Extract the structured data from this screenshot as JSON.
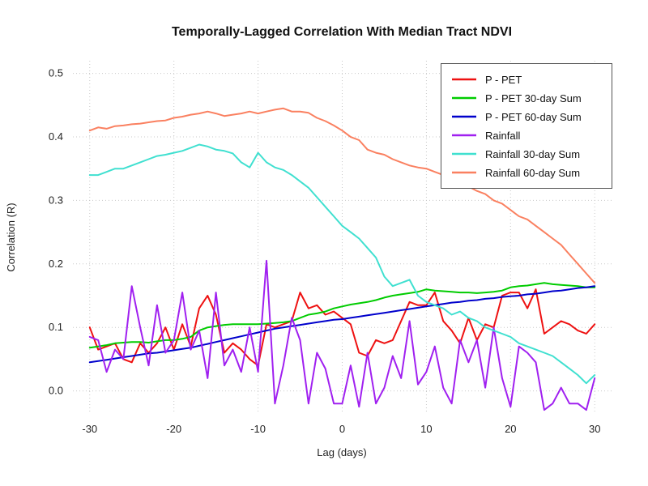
{
  "chart_data": {
    "type": "line",
    "title": "Temporally-Lagged Correlation With Median Tract NDVI",
    "xlabel": "Lag (days)",
    "ylabel": "Correlation (R)",
    "xlim": [
      -32,
      32
    ],
    "ylim": [
      -0.035,
      0.52
    ],
    "xticks": [
      -30,
      -20,
      -10,
      0,
      10,
      20,
      30
    ],
    "xtick_labels": [
      "-30",
      "-20",
      "-10",
      "0",
      "10",
      "20",
      "30"
    ],
    "yticks": [
      0.0,
      0.1,
      0.2,
      0.3,
      0.4,
      0.5
    ],
    "ytick_labels": [
      "0.0",
      "0.1",
      "0.2",
      "0.3",
      "0.4",
      "0.5"
    ],
    "grid": true,
    "grid_color": "#c8c8c8",
    "legend_position": "top-right",
    "x": [
      -30,
      -29,
      -28,
      -27,
      -26,
      -25,
      -24,
      -23,
      -22,
      -21,
      -20,
      -19,
      -18,
      -17,
      -16,
      -15,
      -14,
      -13,
      -12,
      -11,
      -10,
      -9,
      -8,
      -7,
      -6,
      -5,
      -4,
      -3,
      -2,
      -1,
      0,
      1,
      2,
      3,
      4,
      5,
      6,
      7,
      8,
      9,
      10,
      11,
      12,
      13,
      14,
      15,
      16,
      17,
      18,
      19,
      20,
      21,
      22,
      23,
      24,
      25,
      26,
      27,
      28,
      29,
      30
    ],
    "series": [
      {
        "name": "P - PET",
        "color": "#ee1111",
        "values": [
          0.1,
          0.065,
          0.07,
          0.075,
          0.05,
          0.045,
          0.075,
          0.06,
          0.075,
          0.1,
          0.065,
          0.105,
          0.07,
          0.13,
          0.15,
          0.12,
          0.06,
          0.075,
          0.065,
          0.05,
          0.04,
          0.105,
          0.1,
          0.105,
          0.11,
          0.155,
          0.13,
          0.135,
          0.12,
          0.125,
          0.115,
          0.105,
          0.06,
          0.055,
          0.08,
          0.075,
          0.08,
          0.11,
          0.14,
          0.135,
          0.135,
          0.155,
          0.11,
          0.095,
          0.075,
          0.115,
          0.08,
          0.105,
          0.1,
          0.15,
          0.155,
          0.155,
          0.13,
          0.16,
          0.09,
          0.1,
          0.11,
          0.105,
          0.095,
          0.09,
          0.105
        ]
      },
      {
        "name": "P - PET 30-day Sum",
        "color": "#00cc00",
        "values": [
          0.068,
          0.07,
          0.072,
          0.075,
          0.076,
          0.077,
          0.077,
          0.076,
          0.078,
          0.08,
          0.08,
          0.082,
          0.085,
          0.095,
          0.1,
          0.102,
          0.104,
          0.105,
          0.105,
          0.105,
          0.105,
          0.106,
          0.107,
          0.108,
          0.11,
          0.115,
          0.12,
          0.122,
          0.125,
          0.13,
          0.133,
          0.136,
          0.138,
          0.14,
          0.143,
          0.147,
          0.15,
          0.152,
          0.154,
          0.156,
          0.16,
          0.158,
          0.157,
          0.156,
          0.155,
          0.155,
          0.154,
          0.155,
          0.156,
          0.158,
          0.163,
          0.165,
          0.166,
          0.168,
          0.17,
          0.168,
          0.167,
          0.166,
          0.165,
          0.163,
          0.163
        ]
      },
      {
        "name": "P - PET 60-day Sum",
        "color": "#0000cc",
        "values": [
          0.045,
          0.047,
          0.049,
          0.051,
          0.053,
          0.055,
          0.057,
          0.059,
          0.06,
          0.062,
          0.064,
          0.066,
          0.068,
          0.071,
          0.074,
          0.077,
          0.08,
          0.083,
          0.086,
          0.089,
          0.092,
          0.095,
          0.098,
          0.1,
          0.102,
          0.104,
          0.106,
          0.108,
          0.11,
          0.112,
          0.113,
          0.115,
          0.117,
          0.119,
          0.121,
          0.123,
          0.125,
          0.127,
          0.129,
          0.131,
          0.133,
          0.135,
          0.137,
          0.139,
          0.14,
          0.142,
          0.143,
          0.145,
          0.146,
          0.148,
          0.149,
          0.15,
          0.152,
          0.153,
          0.155,
          0.157,
          0.158,
          0.16,
          0.162,
          0.163,
          0.165
        ]
      },
      {
        "name": "Rainfall",
        "color": "#a020f0",
        "values": [
          0.085,
          0.08,
          0.03,
          0.065,
          0.05,
          0.165,
          0.1,
          0.04,
          0.135,
          0.06,
          0.08,
          0.155,
          0.065,
          0.095,
          0.02,
          0.155,
          0.04,
          0.065,
          0.03,
          0.1,
          0.03,
          0.205,
          -0.02,
          0.04,
          0.115,
          0.08,
          -0.02,
          0.06,
          0.035,
          -0.02,
          -0.02,
          0.04,
          -0.025,
          0.06,
          -0.02,
          0.005,
          0.055,
          0.02,
          0.11,
          0.01,
          0.03,
          0.07,
          0.005,
          -0.02,
          0.08,
          0.045,
          0.08,
          0.005,
          0.1,
          0.02,
          -0.025,
          0.07,
          0.06,
          0.045,
          -0.03,
          -0.02,
          0.005,
          -0.02,
          -0.02,
          -0.03,
          0.02
        ]
      },
      {
        "name": "Rainfall 30-day Sum",
        "color": "#40e0d0",
        "values": [
          0.34,
          0.34,
          0.345,
          0.35,
          0.35,
          0.355,
          0.36,
          0.365,
          0.37,
          0.372,
          0.375,
          0.378,
          0.383,
          0.388,
          0.385,
          0.38,
          0.378,
          0.374,
          0.36,
          0.352,
          0.375,
          0.36,
          0.352,
          0.348,
          0.34,
          0.33,
          0.32,
          0.305,
          0.29,
          0.275,
          0.26,
          0.25,
          0.24,
          0.225,
          0.21,
          0.18,
          0.165,
          0.17,
          0.175,
          0.15,
          0.14,
          0.135,
          0.13,
          0.12,
          0.125,
          0.115,
          0.11,
          0.1,
          0.095,
          0.09,
          0.085,
          0.075,
          0.07,
          0.065,
          0.06,
          0.055,
          0.045,
          0.035,
          0.025,
          0.012,
          0.025
        ]
      },
      {
        "name": "Rainfall 60-day Sum",
        "color": "#fa8060",
        "values": [
          0.41,
          0.415,
          0.413,
          0.417,
          0.418,
          0.42,
          0.421,
          0.423,
          0.425,
          0.426,
          0.43,
          0.432,
          0.435,
          0.437,
          0.44,
          0.437,
          0.433,
          0.435,
          0.437,
          0.44,
          0.437,
          0.44,
          0.443,
          0.445,
          0.44,
          0.44,
          0.438,
          0.43,
          0.425,
          0.418,
          0.41,
          0.4,
          0.395,
          0.38,
          0.375,
          0.372,
          0.365,
          0.36,
          0.355,
          0.352,
          0.35,
          0.345,
          0.34,
          0.335,
          0.33,
          0.322,
          0.315,
          0.31,
          0.3,
          0.295,
          0.285,
          0.275,
          0.27,
          0.26,
          0.25,
          0.24,
          0.23,
          0.215,
          0.2,
          0.185,
          0.17
        ]
      }
    ]
  }
}
